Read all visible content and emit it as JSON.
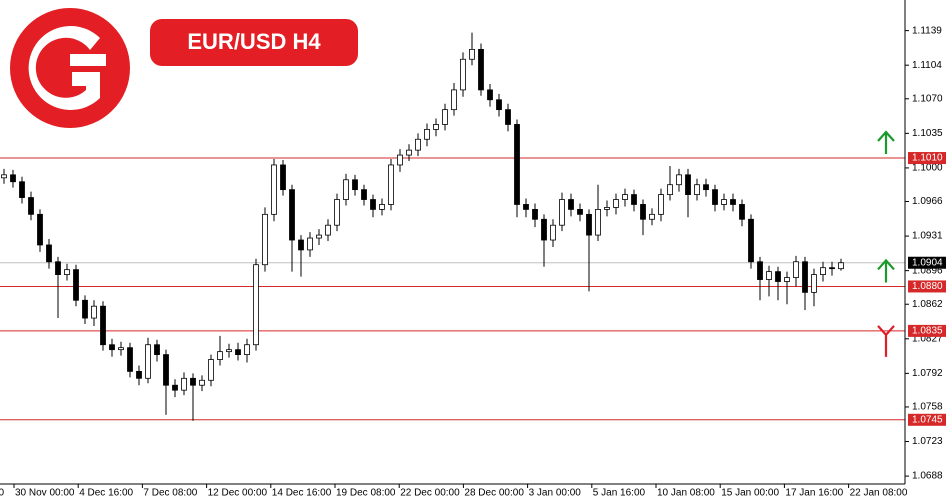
{
  "chart_data": {
    "type": "candlestick",
    "title": "EUR/USD H4",
    "open": [
      1.099,
      1.0993,
      1.0986,
      1.097,
      1.0953,
      1.0922,
      1.0905,
      1.0892,
      1.0897,
      1.0866,
      1.0848,
      1.086,
      1.0821,
      1.0816,
      1.0818,
      1.0794,
      1.0787,
      1.0821,
      1.0811,
      1.078,
      1.0775,
      1.0787,
      1.078,
      1.0785,
      1.0806,
      1.0814,
      1.0816,
      1.0811,
      1.0821,
      1.0902,
      1.0953,
      1.1003,
      1.0978,
      1.0927,
      1.0917,
      1.0929,
      1.0932,
      1.0942,
      1.0968,
      1.0988,
      1.0978,
      1.0968,
      1.0958,
      1.0963,
      1.1003,
      1.1013,
      1.1018,
      1.1029,
      1.1039,
      1.1044,
      1.1059,
      1.1079,
      1.111,
      1.112,
      1.1079,
      1.1069,
      1.1059,
      1.1044,
      1.0963,
      1.0958,
      1.0948,
      1.0927,
      1.0942,
      1.0968,
      1.0958,
      1.0953,
      1.0932,
      1.0958,
      1.096,
      1.0968,
      1.0973,
      1.0963,
      1.0948,
      1.0953,
      1.0973,
      1.0983,
      1.0993,
      1.0973,
      1.0983,
      1.0978,
      1.0963,
      1.0968,
      1.0963,
      1.0948,
      1.0905,
      1.0887,
      1.0895,
      1.0885,
      1.0889,
      1.0905,
      1.0874,
      1.0892,
      1.0899,
      1.0898
    ],
    "high": [
      1.0999,
      1.0998,
      1.0991,
      1.0976,
      1.0958,
      1.0928,
      1.091,
      1.0903,
      1.0902,
      1.0871,
      1.0866,
      1.0865,
      1.0827,
      1.0824,
      1.0823,
      1.08,
      1.0828,
      1.0826,
      1.0816,
      1.0786,
      1.0793,
      1.0792,
      1.079,
      1.0811,
      1.083,
      1.0822,
      1.0823,
      1.0827,
      1.0908,
      1.096,
      1.1009,
      1.1008,
      1.0983,
      1.0932,
      1.0935,
      1.0938,
      1.0948,
      1.0974,
      1.0994,
      1.0993,
      1.0983,
      1.0973,
      1.0969,
      1.1009,
      1.1019,
      1.1024,
      1.1035,
      1.1045,
      1.105,
      1.1065,
      1.1086,
      1.1117,
      1.1137,
      1.1126,
      1.1085,
      1.1075,
      1.1065,
      1.1049,
      1.0969,
      1.0964,
      1.0953,
      1.0948,
      1.0975,
      1.0974,
      1.0964,
      1.0958,
      1.0983,
      1.0967,
      1.0974,
      1.0979,
      1.0978,
      1.0968,
      1.0959,
      1.0979,
      1.1002,
      1.0999,
      1.0999,
      1.0989,
      1.0989,
      1.0983,
      1.0974,
      1.0974,
      1.0968,
      1.0953,
      1.091,
      1.0901,
      1.09,
      1.0895,
      1.0911,
      1.091,
      1.0898,
      1.0905,
      1.0905,
      1.0908
    ],
    "low": [
      1.0984,
      1.098,
      1.0964,
      1.0947,
      1.0915,
      1.0898,
      1.0848,
      1.0886,
      1.086,
      1.0842,
      1.084,
      1.0815,
      1.0809,
      1.081,
      1.0788,
      1.078,
      1.0782,
      1.0804,
      1.075,
      1.0768,
      1.077,
      1.0744,
      1.0774,
      1.0779,
      1.08,
      1.0808,
      1.0805,
      1.0803,
      1.0815,
      1.0895,
      1.0946,
      1.0972,
      1.0895,
      1.089,
      1.091,
      1.0922,
      1.0926,
      1.0936,
      1.0962,
      1.0972,
      1.0962,
      1.095,
      1.0952,
      1.0957,
      1.0996,
      1.1007,
      1.1012,
      1.1022,
      1.1032,
      1.1038,
      1.1053,
      1.1072,
      1.1104,
      1.1073,
      1.1062,
      1.1052,
      1.1037,
      1.095,
      1.095,
      1.094,
      1.09,
      1.092,
      1.0936,
      1.0951,
      1.0946,
      1.0875,
      1.0926,
      1.0951,
      1.0953,
      1.0961,
      1.0956,
      1.0932,
      1.0942,
      1.0946,
      1.0967,
      1.0976,
      1.095,
      1.0967,
      1.0971,
      1.0956,
      1.0957,
      1.0956,
      1.0941,
      1.0898,
      1.0866,
      1.087,
      1.0866,
      1.0862,
      1.088,
      1.0856,
      1.086,
      1.0885,
      1.0891,
      1.0896
    ],
    "close": [
      1.0993,
      1.0986,
      1.097,
      1.0953,
      1.0922,
      1.0905,
      1.0892,
      1.0897,
      1.0866,
      1.0848,
      1.086,
      1.0821,
      1.0816,
      1.0818,
      1.0794,
      1.0787,
      1.0821,
      1.0811,
      1.078,
      1.0775,
      1.0787,
      1.078,
      1.0785,
      1.0806,
      1.0814,
      1.0816,
      1.0811,
      1.0821,
      1.0902,
      1.0953,
      1.1003,
      1.0978,
      1.0927,
      1.0917,
      1.0929,
      1.0932,
      1.0942,
      1.0968,
      1.0988,
      1.0978,
      1.0968,
      1.0958,
      1.0963,
      1.1003,
      1.1013,
      1.1018,
      1.1029,
      1.1039,
      1.1044,
      1.1059,
      1.1079,
      1.111,
      1.112,
      1.1079,
      1.1069,
      1.1059,
      1.1044,
      1.0963,
      1.0958,
      1.0948,
      1.0927,
      1.0942,
      1.0968,
      1.0958,
      1.0953,
      1.0932,
      1.0958,
      1.096,
      1.0968,
      1.0973,
      1.0963,
      1.0948,
      1.0953,
      1.0973,
      1.0983,
      1.0993,
      1.0973,
      1.0983,
      1.0978,
      1.0963,
      1.0968,
      1.0963,
      1.0948,
      1.0905,
      1.0887,
      1.0895,
      1.0885,
      1.0889,
      1.0905,
      1.0874,
      1.0892,
      1.0899,
      1.0898,
      1.0904
    ],
    "x_labels": [
      "0",
      "30 Nov 00:00",
      "4 Dec 16:00",
      "7 Dec 08:00",
      "12 Dec 00:00",
      "14 Dec 16:00",
      "19 Dec 08:00",
      "22 Dec 00:00",
      "28 Dec 00:00",
      "3 Jan 00:00",
      "5 Jan 16:00",
      "10 Jan 08:00",
      "15 Jan 00:00",
      "17 Jan 16:00",
      "22 Jan 08:00"
    ],
    "ylim": [
      1.068,
      1.117
    ],
    "yticks": [
      1.1139,
      1.1104,
      {
        "value": 1.107,
        "label": "1.1070"
      },
      1.1035,
      {
        "value": 1.1,
        "label": "1.1000"
      },
      1.0966,
      1.0931,
      1.0896,
      1.0862,
      1.0827,
      1.0792,
      1.0758,
      1.0723,
      1.0688
    ],
    "levels": [
      {
        "value": 1.101,
        "label": "1.1010",
        "color": "#d62828",
        "arrow": "up",
        "arrow_color": "#1a9a2a"
      },
      {
        "value": 1.088,
        "label": "1.0880",
        "color": "#d62828",
        "arrow": "up",
        "arrow_color": "#1a9a2a"
      },
      {
        "value": 1.0835,
        "label": "1.0835",
        "color": "#d62828",
        "arrow": "down",
        "arrow_color": "#e01e2a"
      },
      {
        "value": 1.0745,
        "label": "1.0745",
        "color": "#d62828"
      }
    ],
    "current_price": {
      "value": 1.0904,
      "label": "1.0904",
      "color": "#000000"
    }
  }
}
